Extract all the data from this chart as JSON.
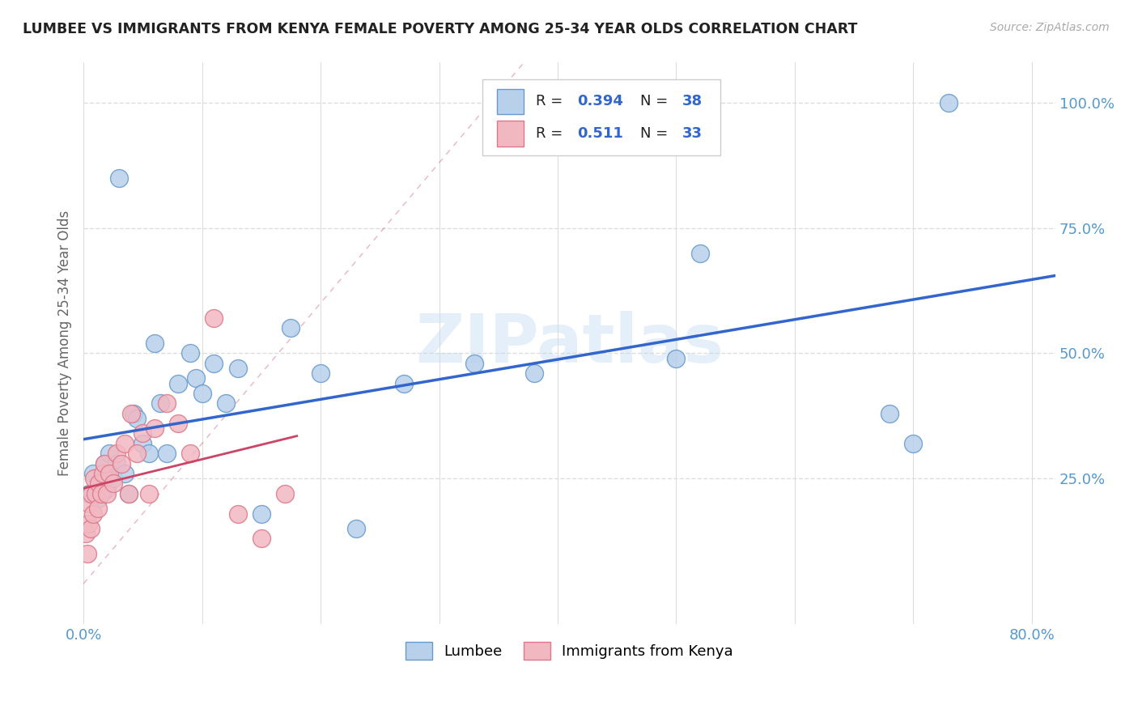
{
  "title": "LUMBEE VS IMMIGRANTS FROM KENYA FEMALE POVERTY AMONG 25-34 YEAR OLDS CORRELATION CHART",
  "source": "Source: ZipAtlas.com",
  "ylabel": "Female Poverty Among 25-34 Year Olds",
  "xlim": [
    0.0,
    0.82
  ],
  "ylim": [
    -0.04,
    1.08
  ],
  "lumbee_color": "#b8d0ea",
  "kenya_color": "#f2b8c2",
  "lumbee_edge": "#6699cc",
  "kenya_edge": "#dd7788",
  "line_blue": "#3366cc",
  "line_pink": "#cc4466",
  "watermark": "ZIPatlas",
  "lumbee_r": "0.394",
  "lumbee_n": "38",
  "kenya_r": "0.511",
  "kenya_n": "33",
  "lumbee_x": [
    0.005,
    0.008,
    0.012,
    0.015,
    0.018,
    0.02,
    0.022,
    0.025,
    0.028,
    0.03,
    0.035,
    0.038,
    0.042,
    0.045,
    0.05,
    0.055,
    0.06,
    0.065,
    0.07,
    0.08,
    0.09,
    0.095,
    0.1,
    0.11,
    0.12,
    0.13,
    0.15,
    0.175,
    0.2,
    0.23,
    0.27,
    0.33,
    0.38,
    0.5,
    0.52,
    0.68,
    0.7,
    0.73
  ],
  "lumbee_y": [
    0.22,
    0.26,
    0.21,
    0.24,
    0.28,
    0.23,
    0.3,
    0.25,
    0.28,
    0.85,
    0.26,
    0.22,
    0.38,
    0.37,
    0.32,
    0.3,
    0.52,
    0.4,
    0.3,
    0.44,
    0.5,
    0.45,
    0.42,
    0.48,
    0.4,
    0.47,
    0.18,
    0.55,
    0.46,
    0.15,
    0.44,
    0.48,
    0.46,
    0.49,
    0.7,
    0.38,
    0.32,
    1.0
  ],
  "kenya_x": [
    0.002,
    0.003,
    0.004,
    0.005,
    0.006,
    0.007,
    0.008,
    0.009,
    0.01,
    0.012,
    0.013,
    0.015,
    0.016,
    0.018,
    0.02,
    0.022,
    0.025,
    0.028,
    0.032,
    0.035,
    0.038,
    0.04,
    0.045,
    0.05,
    0.055,
    0.06,
    0.07,
    0.08,
    0.09,
    0.11,
    0.13,
    0.15,
    0.17
  ],
  "kenya_y": [
    0.14,
    0.1,
    0.16,
    0.2,
    0.15,
    0.22,
    0.18,
    0.25,
    0.22,
    0.19,
    0.24,
    0.22,
    0.26,
    0.28,
    0.22,
    0.26,
    0.24,
    0.3,
    0.28,
    0.32,
    0.22,
    0.38,
    0.3,
    0.34,
    0.22,
    0.35,
    0.4,
    0.36,
    0.3,
    0.57,
    0.18,
    0.13,
    0.22
  ],
  "background_color": "#ffffff",
  "grid_color": "#dddddd",
  "tick_color": "#5599cc"
}
